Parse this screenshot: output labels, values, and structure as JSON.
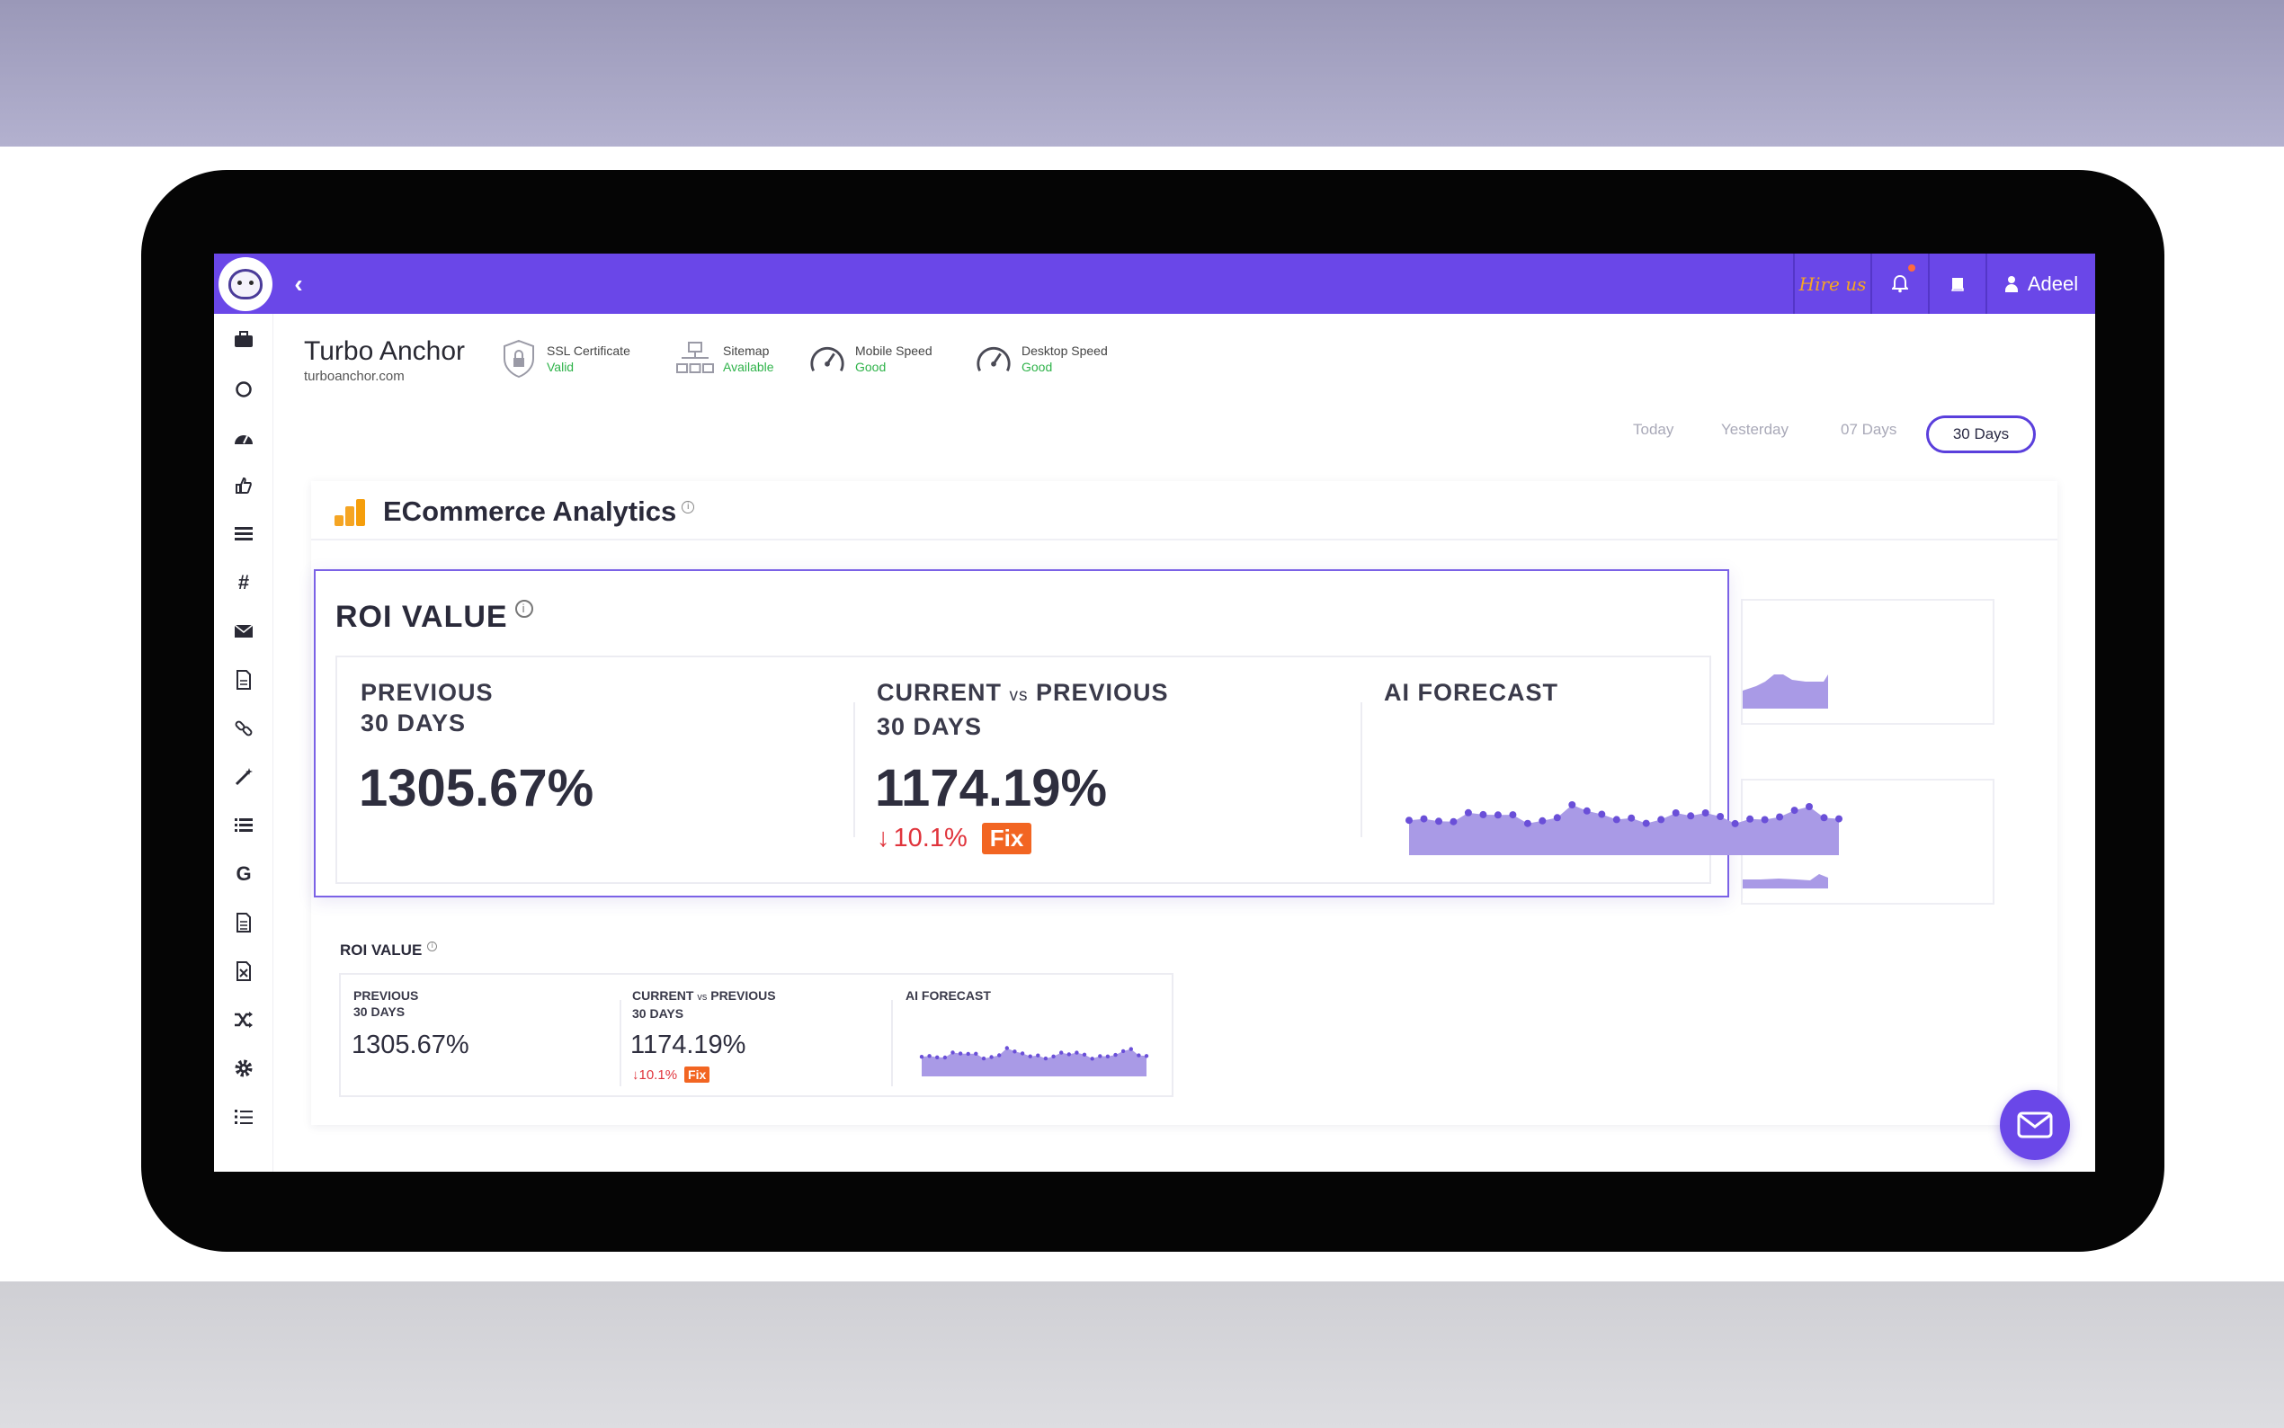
{
  "topbar": {
    "hire_label": "Hire us",
    "user_name": "Adeel",
    "accent_color": "#6a47e8"
  },
  "sidebar": {
    "items": [
      {
        "icon": "briefcase-icon"
      },
      {
        "icon": "circle-icon"
      },
      {
        "icon": "dashboard-icon"
      },
      {
        "icon": "thumbs-up-icon"
      },
      {
        "icon": "list-icon"
      },
      {
        "icon": "hashtag-icon"
      },
      {
        "icon": "envelope-icon"
      },
      {
        "icon": "file-icon"
      },
      {
        "icon": "link-icon"
      },
      {
        "icon": "magic-wand-icon"
      },
      {
        "icon": "list-lines-icon"
      },
      {
        "icon": "google-icon"
      },
      {
        "icon": "document-icon"
      },
      {
        "icon": "excel-file-icon"
      },
      {
        "icon": "shuffle-icon"
      },
      {
        "icon": "gear-icon"
      },
      {
        "icon": "ordered-list-icon"
      }
    ]
  },
  "site": {
    "title": "Turbo Anchor",
    "url": "turboanchor.com"
  },
  "status": {
    "ssl": {
      "label": "SSL Certificate",
      "value": "Valid"
    },
    "sitemap": {
      "label": "Sitemap",
      "value": "Available"
    },
    "mobile": {
      "label": "Mobile Speed",
      "value": "Good"
    },
    "desktop": {
      "label": "Desktop Speed",
      "value": "Good"
    }
  },
  "date_filters": {
    "today": "Today",
    "yesterday": "Yesterday",
    "seven": "07 Days",
    "thirty": "30 Days",
    "active": "30 Days"
  },
  "card": {
    "title": "ECommerce Analytics"
  },
  "roi_big": {
    "title": "ROI VALUE",
    "prev_label_1": "PREVIOUS",
    "prev_label_2": "30 DAYS",
    "prev_value": "1305.67%",
    "cur_label_a": "CURRENT ",
    "cur_label_vs": "vs",
    "cur_label_b": " PREVIOUS",
    "cur_label_2": "30 DAYS",
    "cur_value": "1174.19%",
    "delta": "10.1%",
    "fix": "Fix",
    "forecast_label": "AI FORECAST"
  },
  "roi_small": {
    "title": "ROI VALUE",
    "prev_label_1": "PREVIOUS",
    "prev_label_2": "30 DAYS",
    "prev_value": "1305.67%",
    "cur_label_a": "CURRENT ",
    "cur_label_vs": "vs",
    "cur_label_b": " PREVIOUS",
    "cur_label_2": "30 DAYS",
    "cur_value": "1174.19%",
    "delta": "10.1%",
    "fix": "Fix",
    "forecast_label": "AI FORECAST"
  }
}
